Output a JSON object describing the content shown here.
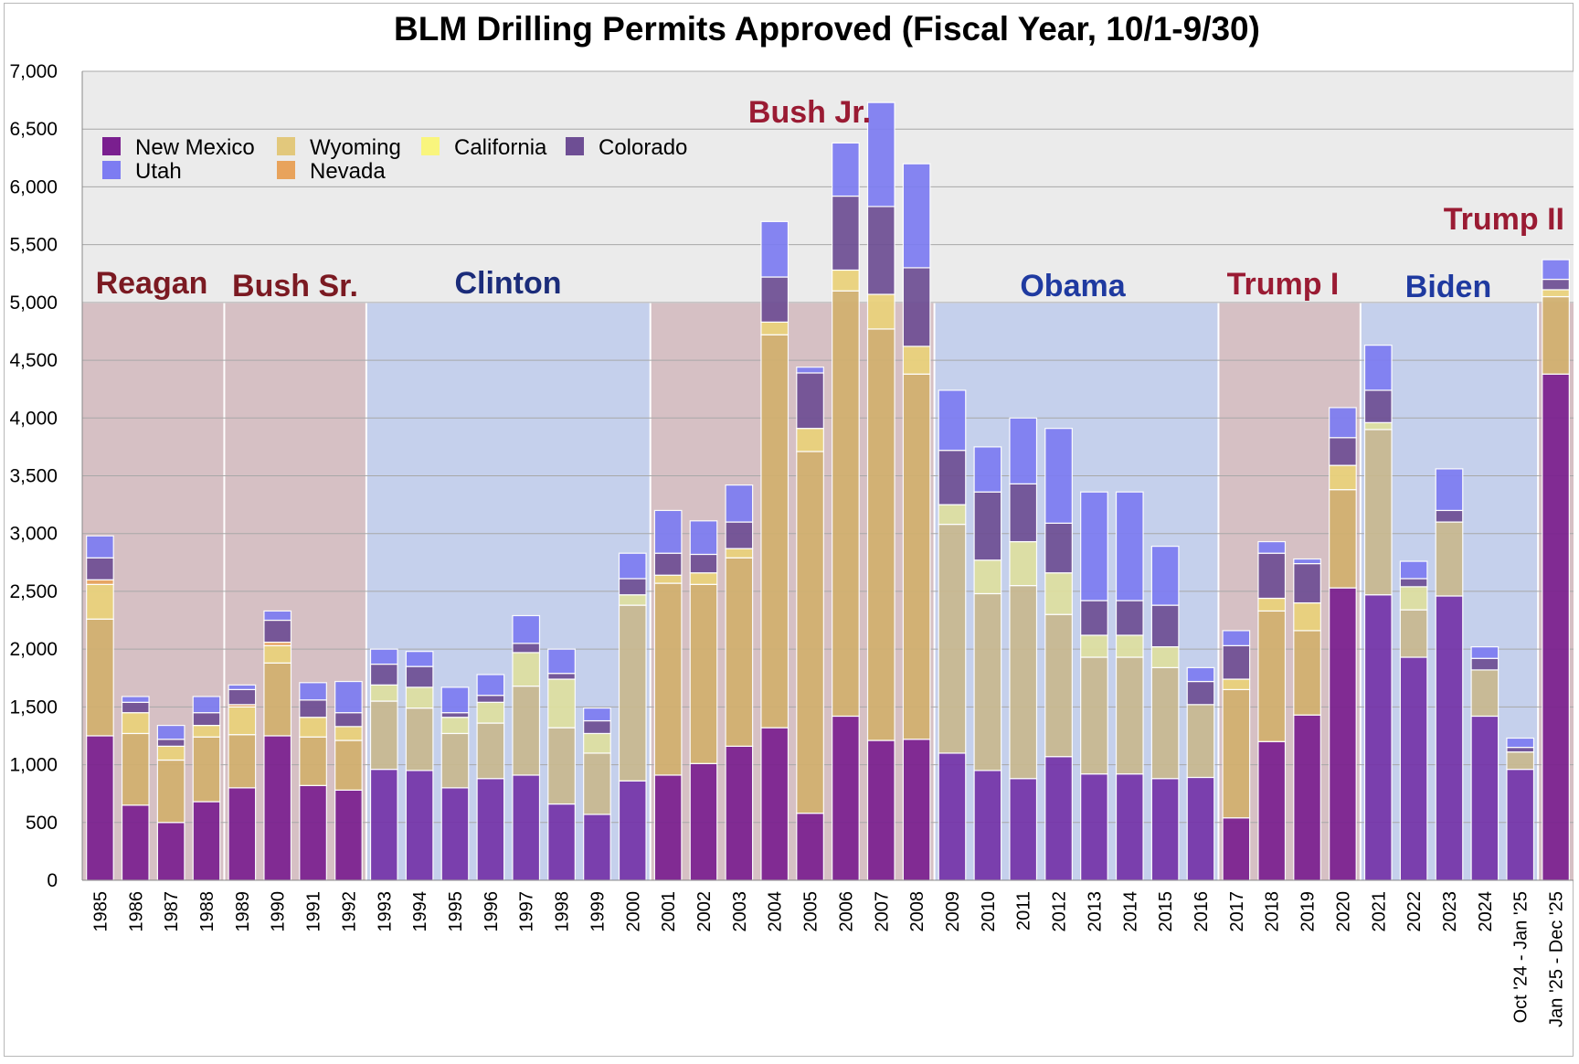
{
  "chart_data": {
    "type": "bar",
    "stacked": true,
    "title": "BLM Drilling Permits Approved (Fiscal Year, 10/1-9/30)",
    "xlabel": "",
    "ylabel": "",
    "ylim": [
      0,
      7000
    ],
    "yticks": [
      0,
      500,
      1000,
      1500,
      2000,
      2500,
      3000,
      3500,
      4000,
      4500,
      5000,
      5500,
      6000,
      6500,
      7000
    ],
    "ytick_labels": [
      "0",
      "500",
      "1,000",
      "1,500",
      "2,000",
      "2,500",
      "3,000",
      "3,500",
      "4,000",
      "4,500",
      "5,000",
      "5,500",
      "6,000",
      "6,500",
      "7,000"
    ],
    "grid": true,
    "legend_position": "top-left",
    "categories": [
      "1985",
      "1986",
      "1987",
      "1988",
      "1989",
      "1990",
      "1991",
      "1992",
      "1993",
      "1994",
      "1995",
      "1996",
      "1997",
      "1998",
      "1999",
      "2000",
      "2001",
      "2002",
      "2003",
      "2004",
      "2005",
      "2006",
      "2007",
      "2008",
      "2009",
      "2010",
      "2011",
      "2012",
      "2013",
      "2014",
      "2015",
      "2016",
      "2017",
      "2018",
      "2019",
      "2020",
      "2021",
      "2022",
      "2023",
      "2024",
      "Oct '24 - Jan '25",
      "Jan '25 - Dec '25"
    ],
    "series": [
      {
        "name": "New Mexico",
        "color": "#7a1f8f",
        "values": [
          1250,
          650,
          500,
          680,
          800,
          1250,
          820,
          780,
          960,
          950,
          800,
          880,
          910,
          660,
          570,
          860,
          910,
          1010,
          1160,
          1320,
          580,
          1420,
          1210,
          1220,
          1100,
          950,
          880,
          1070,
          920,
          920,
          880,
          890,
          540,
          1200,
          1430,
          2530,
          2470,
          1930,
          2460,
          1420,
          960,
          4380
        ]
      },
      {
        "name": "Wyoming",
        "color": "#d2b06e",
        "values": [
          1010,
          620,
          540,
          560,
          460,
          630,
          420,
          430,
          590,
          540,
          470,
          480,
          770,
          660,
          530,
          1520,
          1660,
          1550,
          1630,
          3400,
          3130,
          3680,
          3560,
          3160,
          1980,
          1530,
          1670,
          1230,
          1010,
          1010,
          960,
          630,
          1110,
          1130,
          730,
          850,
          1430,
          410,
          640,
          400,
          150,
          670
        ]
      },
      {
        "name": "California",
        "color": "#ead27a",
        "values": [
          300,
          180,
          120,
          100,
          240,
          150,
          170,
          120,
          140,
          180,
          140,
          180,
          290,
          420,
          170,
          90,
          70,
          100,
          80,
          110,
          200,
          180,
          300,
          240,
          170,
          290,
          380,
          360,
          190,
          190,
          180,
          0,
          90,
          110,
          240,
          210,
          60,
          200,
          0,
          0,
          0,
          60
        ]
      },
      {
        "name": "Nevada",
        "color": "#e8a35c",
        "values": [
          40,
          0,
          0,
          0,
          20,
          30,
          0,
          0,
          0,
          0,
          0,
          0,
          0,
          0,
          0,
          0,
          0,
          0,
          0,
          0,
          0,
          0,
          0,
          0,
          0,
          0,
          0,
          0,
          0,
          0,
          0,
          0,
          0,
          0,
          0,
          0,
          0,
          0,
          0,
          0,
          0,
          0
        ]
      },
      {
        "name": "Colorado",
        "color": "#6e4e94",
        "values": [
          190,
          90,
          60,
          110,
          130,
          190,
          150,
          120,
          180,
          180,
          40,
          60,
          80,
          50,
          110,
          140,
          190,
          160,
          230,
          390,
          480,
          640,
          760,
          680,
          470,
          590,
          500,
          430,
          300,
          300,
          360,
          200,
          290,
          390,
          340,
          240,
          280,
          70,
          100,
          100,
          40,
          90
        ]
      },
      {
        "name": "Utah",
        "color": "#7d7cf2",
        "values": [
          190,
          50,
          120,
          140,
          40,
          80,
          150,
          270,
          130,
          130,
          220,
          180,
          240,
          210,
          110,
          220,
          370,
          290,
          320,
          480,
          50,
          460,
          900,
          900,
          520,
          390,
          570,
          820,
          940,
          940,
          510,
          120,
          130,
          100,
          40,
          260,
          390,
          150,
          360,
          100,
          80,
          170
        ]
      }
    ],
    "eras": [
      {
        "label": "Reagan",
        "party": "R",
        "start": 0,
        "end": 4,
        "color": "#7b1a22"
      },
      {
        "label": "Bush Sr.",
        "party": "R",
        "start": 4,
        "end": 8,
        "color": "#7b1a22"
      },
      {
        "label": "Clinton",
        "party": "D",
        "start": 8,
        "end": 16,
        "color": "#1b2c7a"
      },
      {
        "label": "Bush Jr.",
        "party": "R",
        "start": 16,
        "end": 24,
        "color": "#9a1b33"
      },
      {
        "label": "Obama",
        "party": "D",
        "start": 24,
        "end": 32,
        "color": "#1f3aa0"
      },
      {
        "label": "Trump I",
        "party": "R",
        "start": 32,
        "end": 36,
        "color": "#9a1b33"
      },
      {
        "label": "Biden",
        "party": "D",
        "start": 36,
        "end": 41,
        "color": "#1f3aa0"
      },
      {
        "label": "Trump II",
        "party": "R",
        "start": 41,
        "end": 42,
        "color": "#9a1b33"
      }
    ],
    "era_band_top": 5000,
    "legend": [
      {
        "name": "New Mexico",
        "color": "#7a1f8f"
      },
      {
        "name": "Wyoming",
        "color": "#e2c87c"
      },
      {
        "name": "California",
        "color": "#f9f57d"
      },
      {
        "name": "Colorado",
        "color": "#6e4e94"
      },
      {
        "name": "Utah",
        "color": "#7d7cf2"
      },
      {
        "name": "Nevada",
        "color": "#e8a35c"
      }
    ]
  }
}
